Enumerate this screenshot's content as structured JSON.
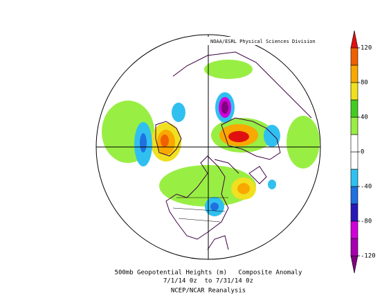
{
  "header": {
    "credit": "NOAA/ESRL Physical Sciences Division"
  },
  "caption": {
    "line1": "500mb Geopotential Heights (m)   Composite Anomaly",
    "line2": "7/1/14 0z  to 7/31/14 0z",
    "line3": "NCEP/NCAR Reanalysis"
  },
  "colorbar": {
    "lim": [
      -140,
      140
    ],
    "ticks": [
      120,
      80,
      40,
      0,
      -40,
      -80,
      -120
    ],
    "colors": [
      "#800080",
      "#a800b0",
      "#d000d8",
      "#2818b8",
      "#2070e0",
      "#30c0f0",
      "#ffffff",
      "#ffffff",
      "#99ee44",
      "#44cc22",
      "#f0e020",
      "#f8a800",
      "#f06000",
      "#e01010"
    ]
  }
}
